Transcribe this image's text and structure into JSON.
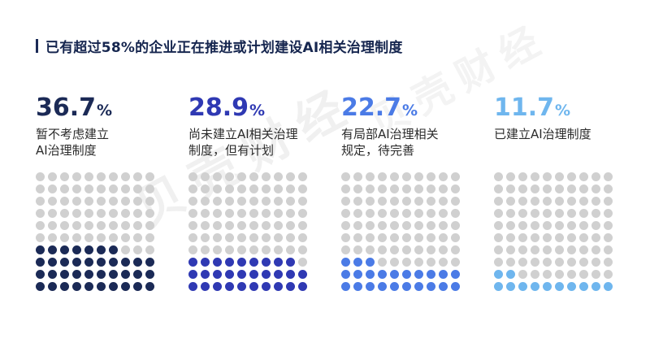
{
  "title": "已有超过58%的企业正在推进或计划建设AI相关治理制度",
  "watermark": "贝壳财经",
  "chart_data": {
    "type": "waffle",
    "title": "已有超过58%的企业正在推进或计划建设AI相关治理制度",
    "total_dots": 100,
    "rows": 10,
    "cols": 10,
    "empty_color": "#d0d0d0",
    "series": [
      {
        "name": "暂不考虑建立AI治理制度",
        "label": "暂不考虑建立\nAI治理制度",
        "value": 36.7,
        "display": "36.7",
        "unit": "%",
        "color": "#1b2a56"
      },
      {
        "name": "尚未建立AI相关治理制度，但有计划",
        "label": "尚未建立AI相关治理\n制度，但有计划",
        "value": 28.9,
        "display": "28.9",
        "unit": "%",
        "color": "#2f39b3"
      },
      {
        "name": "有局部AI治理相关规定，待完善",
        "label": "有局部AI治理相关\n规定，待完善",
        "value": 22.7,
        "display": "22.7",
        "unit": "%",
        "color": "#4b7be6"
      },
      {
        "name": "已建立AI治理制度",
        "label": "已建立AI治理制度",
        "value": 11.7,
        "display": "11.7",
        "unit": "%",
        "color": "#6fb6ee"
      }
    ]
  }
}
